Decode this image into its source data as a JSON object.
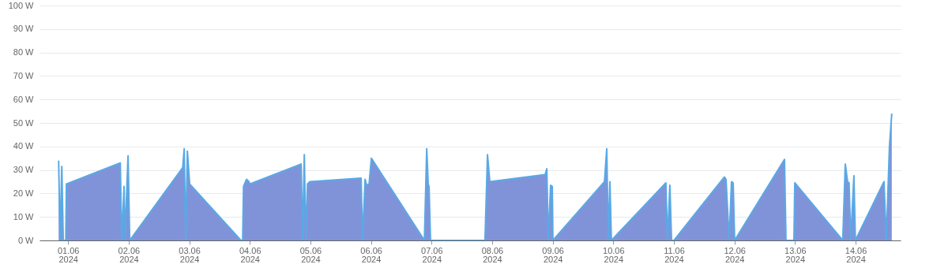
{
  "chart_data": {
    "type": "area",
    "x": [
      "2024-05-31T20:15",
      "2024-05-31T20:50",
      "2024-05-31T21:30",
      "2024-05-31T22:05",
      "2024-05-31T23:05",
      "2024-05-31T23:20",
      "2024-06-01T20:40",
      "2024-06-01T21:15",
      "2024-06-01T22:10",
      "2024-06-01T22:30",
      "2024-06-01T23:45",
      "2024-06-02T00:25",
      "2024-06-02T21:25",
      "2024-06-02T22:00",
      "2024-06-02T22:35",
      "2024-06-02T23:15",
      "2024-06-03T00:10",
      "2024-06-03T20:30",
      "2024-06-03T21:10",
      "2024-06-03T21:30",
      "2024-06-03T22:40",
      "2024-06-03T23:40",
      "2024-06-04T00:00",
      "2024-06-04T20:20",
      "2024-06-04T20:55",
      "2024-06-04T21:35",
      "2024-06-04T22:10",
      "2024-06-04T22:50",
      "2024-06-04T23:45",
      "2024-06-05T20:05",
      "2024-06-05T20:40",
      "2024-06-05T21:40",
      "2024-06-05T22:15",
      "2024-06-05T23:15",
      "2024-06-06T00:10",
      "2024-06-06T21:10",
      "2024-06-06T22:05",
      "2024-06-06T22:40",
      "2024-06-06T23:00",
      "2024-06-06T23:35",
      "2024-06-07T21:10",
      "2024-06-07T22:10",
      "2024-06-07T23:05",
      "2024-06-08T21:00",
      "2024-06-08T21:40",
      "2024-06-08T22:15",
      "2024-06-08T23:10",
      "2024-06-08T23:50",
      "2024-06-09T00:05",
      "2024-06-09T20:30",
      "2024-06-09T21:25",
      "2024-06-09T22:00",
      "2024-06-09T22:40",
      "2024-06-09T23:15",
      "2024-06-10T20:50",
      "2024-06-10T21:30",
      "2024-06-10T22:25",
      "2024-06-10T23:05",
      "2024-06-11T00:00",
      "2024-06-11T20:00",
      "2024-06-11T20:40",
      "2024-06-11T21:55",
      "2024-06-11T22:50",
      "2024-06-11T23:30",
      "2024-06-12T00:05",
      "2024-06-12T19:50",
      "2024-06-12T20:25",
      "2024-06-12T23:35",
      "2024-06-12T23:55",
      "2024-06-13T18:55",
      "2024-06-13T19:55",
      "2024-06-13T20:50",
      "2024-06-13T21:25",
      "2024-06-13T22:05",
      "2024-06-13T23:20",
      "2024-06-13T23:55",
      "2024-06-14T11:15",
      "2024-06-14T12:10",
      "2024-06-14T13:25",
      "2024-06-14T14:20"
    ],
    "series": [
      {
        "color": "#5aa9e6",
        "values": [
          34,
          0,
          31.5,
          0,
          0,
          24,
          33,
          0,
          23,
          0,
          36,
          0,
          31,
          39,
          0,
          38,
          24,
          0,
          0,
          23,
          26,
          25,
          24,
          32.5,
          0,
          36.5,
          0,
          24,
          25,
          26.5,
          0,
          26,
          23.5,
          24,
          35,
          0,
          39,
          24,
          23,
          0,
          0,
          36.5,
          25,
          28,
          30.5,
          0,
          23.5,
          23,
          0,
          25,
          39,
          0,
          25,
          0,
          24.5,
          0,
          23.5,
          0,
          0,
          27,
          26,
          0,
          25,
          24.5,
          0,
          34.5,
          0,
          0,
          24.5,
          0,
          32.5,
          25,
          24.5,
          0,
          27.5,
          0,
          25,
          0,
          40,
          54
        ]
      }
    ],
    "xlim": [
      "2024-05-31T12:40",
      "2024-06-14T17:50"
    ],
    "xticks": [
      {
        "value": "2024-06-01",
        "label": "01.06\n2024"
      },
      {
        "value": "2024-06-02",
        "label": "02.06\n2024"
      },
      {
        "value": "2024-06-03",
        "label": "03.06\n2024"
      },
      {
        "value": "2024-06-04",
        "label": "04.06\n2024"
      },
      {
        "value": "2024-06-05",
        "label": "05.06\n2024"
      },
      {
        "value": "2024-06-06",
        "label": "06.06\n2024"
      },
      {
        "value": "2024-06-07",
        "label": "07.06\n2024"
      },
      {
        "value": "2024-06-08",
        "label": "08.06\n2024"
      },
      {
        "value": "2024-06-09",
        "label": "09.06\n2024"
      },
      {
        "value": "2024-06-10",
        "label": "10.06\n2024"
      },
      {
        "value": "2024-06-11",
        "label": "11.06\n2024"
      },
      {
        "value": "2024-06-12",
        "label": "12.06\n2024"
      },
      {
        "value": "2024-06-13",
        "label": "13.06\n2024"
      },
      {
        "value": "2024-06-14",
        "label": "14.06\n2024"
      }
    ],
    "ylim": [
      0,
      100
    ],
    "yticks": [
      {
        "value": 0,
        "label": "0 W"
      },
      {
        "value": 10,
        "label": "10 W"
      },
      {
        "value": 20,
        "label": "20 W"
      },
      {
        "value": 30,
        "label": "30 W"
      },
      {
        "value": 40,
        "label": "40 W"
      },
      {
        "value": 50,
        "label": "50 W"
      },
      {
        "value": 60,
        "label": "60 W"
      },
      {
        "value": 70,
        "label": "70 W"
      },
      {
        "value": 80,
        "label": "80 W"
      },
      {
        "value": 90,
        "label": "90 W"
      },
      {
        "value": 100,
        "label": "100 W"
      }
    ],
    "grid": "y"
  }
}
